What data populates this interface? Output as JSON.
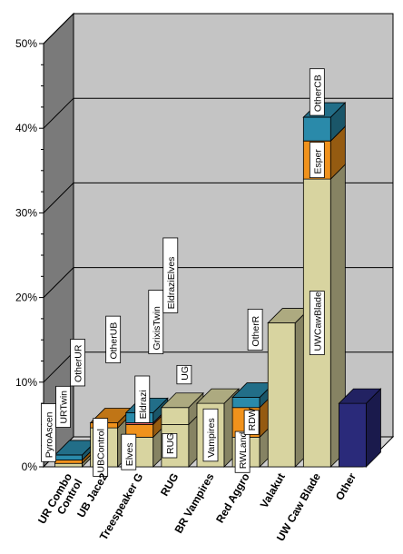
{
  "chart_data": {
    "type": "bar",
    "stacked": true,
    "three_d": true,
    "title": "",
    "xlabel": "",
    "ylabel": "",
    "ylim": [
      0,
      50
    ],
    "yticks": [
      "0%",
      "10%",
      "20%",
      "30%",
      "40%",
      "50%"
    ],
    "grid": true,
    "legend": "none",
    "categories": [
      "UR Combo Control",
      "UB Jace2",
      "Treespeaker G",
      "RUG",
      "BR Vampires",
      "Red Aggro",
      "Valakut",
      "UW Caw Blade",
      "Other"
    ],
    "category_lines": [
      [
        "UR Combo",
        "Control"
      ],
      [
        "UB Jace2"
      ],
      [
        "Treespeaker G"
      ],
      [
        "RUG"
      ],
      [
        "BR Vampires"
      ],
      [
        "Red Aggro"
      ],
      [
        "Valakut"
      ],
      [
        "UW Caw Blade"
      ],
      [
        "Other"
      ]
    ],
    "stacks": [
      [
        {
          "label": "PyroAscen",
          "value": 0.4,
          "color": "#d8d4a0"
        },
        {
          "label": "URTwin",
          "value": 0.4,
          "color": "#f0921c"
        },
        {
          "label": "OtherUR",
          "value": 0.6,
          "color": "#2a8aaa"
        }
      ],
      [
        {
          "label": "UBControl",
          "value": 4.6,
          "color": "#d8d4a0"
        },
        {
          "label": "OtherUB",
          "value": 0.6,
          "color": "#f0921c"
        }
      ],
      [
        {
          "label": "Elves",
          "value": 3.5,
          "color": "#d8d4a0"
        },
        {
          "label": "Eldrazi",
          "value": 1.5,
          "color": "#f0921c"
        },
        {
          "label": "GrixisTwin",
          "value": 0.2,
          "color": "#e06060"
        },
        {
          "label": "EldraziElves",
          "value": 1.2,
          "color": "#2a8aaa"
        }
      ],
      [
        {
          "label": "RUG",
          "value": 5.0,
          "color": "#d8d4a0"
        },
        {
          "label": "UG",
          "value": 2.0,
          "color": "#d8d4a0"
        }
      ],
      [
        {
          "label": "Vampires",
          "value": 7.5,
          "color": "#d8d4a0"
        }
      ],
      [
        {
          "label": "RWLand",
          "value": 3.5,
          "color": "#d8d4a0"
        },
        {
          "label": "RDW",
          "value": 3.5,
          "color": "#f0921c"
        },
        {
          "label": "OtherR",
          "value": 1.2,
          "color": "#2a8aaa"
        }
      ],
      [
        {
          "label": "",
          "value": 17.0,
          "color": "#d8d4a0"
        }
      ],
      [
        {
          "label": "UWCawBlade",
          "value": 34.0,
          "color": "#d8d4a0"
        },
        {
          "label": "Esper",
          "value": 4.5,
          "color": "#f0921c"
        },
        {
          "label": "OtherCB",
          "value": 2.8,
          "color": "#2a8aaa"
        }
      ],
      [
        {
          "label": "",
          "value": 7.5,
          "color": "#2a2a7a"
        }
      ]
    ]
  }
}
